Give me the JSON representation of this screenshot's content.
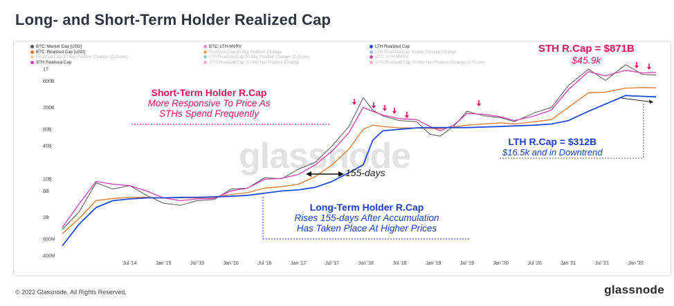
{
  "title": "Long- and Short-Term Holder Realized Cap",
  "watermark": "glassnode",
  "footer": {
    "copyright": "© 2022 Glassnode. All Rights Reserved.",
    "brand": "glassnode"
  },
  "colors": {
    "market_cap": "#555555",
    "sth": "#d43fb2",
    "lth": "#1f4bd8",
    "realized": "#e07a2a",
    "accent_pink": "#e0115f",
    "accent_blue": "#1a3fc4"
  },
  "legend": [
    {
      "label": "BTC: Market Cap [USD]",
      "color": "#555555",
      "faded": false
    },
    {
      "label": "BTC: Realized Cap [USD]",
      "color": "#e07a2a",
      "faded": false
    },
    {
      "label": "Realized Cap 30-day Position Change (Z-Score)",
      "color": "#f3c9a3",
      "faded": true
    },
    {
      "label": "STH Realised Cap",
      "color": "#d43fb2",
      "faded": false
    },
    {
      "label": "BTC: LTH-MVRV",
      "color": "#f08ac4",
      "faded": false
    },
    {
      "label": "Realized Cap 30-day Position Change",
      "color": "#f1a66b",
      "faded": true
    },
    {
      "label": "LTH Realized Cap 30-day Position Change (Z-Score)",
      "color": "#8fd0c4",
      "faded": true
    },
    {
      "label": "STH Realised Cap 30-day Net Position Change",
      "color": "#f0b0c8",
      "faded": true
    },
    {
      "label": "LTH Realized Cap",
      "color": "#1f4bd8",
      "faded": false
    },
    {
      "label": "LTH Realized Cap 30-day Position Change",
      "color": "#9db4f0",
      "faded": true
    },
    {
      "label": "BTC: STH-MVRV",
      "color": "#c04da8",
      "faded": true
    },
    {
      "label": "STH Realised Cap 30-day Net Position Change (Z-Score)",
      "color": "#f0b0c8",
      "faded": true
    }
  ],
  "annotations": {
    "sth_title": "STH R.Cap = $871B",
    "sth_price": "$45.9k",
    "lth_title": "LTH R.Cap = $312B",
    "lth_sub": "$16.5k and in Downtrend",
    "sth_box_title": "Short-Term Holder R.Cap",
    "sth_box_line1": "More Responsive To Price As",
    "sth_box_line2": "STHs Spend Frequently",
    "lth_box_title": "Long-Term Holder R.Cap",
    "lth_box_line1": "Rises 155-days After Accumulation",
    "lth_box_line2": "Has Taken Place At Higher Prices",
    "lag_label": "155-days"
  },
  "chart_data": {
    "type": "line",
    "title": "Long- and Short-Term Holder Realized Cap",
    "xlabel": "",
    "ylabel": "",
    "y_scale": "log",
    "ylim": [
      400000000,
      1000000000000
    ],
    "y_ticks": [
      "1T",
      "600B",
      "200B",
      "80B",
      "40B",
      "10B",
      "6B",
      "2B",
      "800M",
      "400M"
    ],
    "y_tick_values": [
      1000000000000,
      600000000000,
      200000000000,
      80000000000,
      40000000000,
      10000000000,
      6000000000,
      2000000000,
      800000000,
      400000000
    ],
    "x_ticks": [
      "Jul '14",
      "Jan '15",
      "Jul '15",
      "Jan '16",
      "Jul '16",
      "Jan '17",
      "Jul '17",
      "Jan '18",
      "Jul '18",
      "Jan '19",
      "Jul '19",
      "Jan '20",
      "Jul '20",
      "Jan '21",
      "Jul '21",
      "Jan '22"
    ],
    "x": [
      2013.5,
      2013.75,
      2014.0,
      2014.25,
      2014.5,
      2014.75,
      2015.0,
      2015.25,
      2015.5,
      2015.75,
      2016.0,
      2016.25,
      2016.5,
      2016.75,
      2017.0,
      2017.25,
      2017.5,
      2017.75,
      2017.96,
      2018.1,
      2018.25,
      2018.5,
      2018.75,
      2018.95,
      2019.1,
      2019.3,
      2019.5,
      2019.75,
      2020.0,
      2020.2,
      2020.5,
      2020.75,
      2021.0,
      2021.3,
      2021.55,
      2021.85,
      2022.1,
      2022.3
    ],
    "series": [
      {
        "name": "BTC: Market Cap [USD]",
        "values": [
          1200000000.0,
          2500000000.0,
          8500000000.0,
          6500000000.0,
          7500000000.0,
          5000000000.0,
          3600000000.0,
          3300000000.0,
          4000000000.0,
          4200000000.0,
          6500000000.0,
          6800000000.0,
          10500000000.0,
          10000000000.0,
          15000000000.0,
          20000000000.0,
          40000000000.0,
          90000000000.0,
          300000000000.0,
          180000000000.0,
          140000000000.0,
          115000000000.0,
          110000000000.0,
          65000000000.0,
          60000000000.0,
          90000000000.0,
          170000000000.0,
          140000000000.0,
          130000000000.0,
          110000000000.0,
          160000000000.0,
          200000000000.0,
          500000000000.0,
          1000000000000.0,
          620000000000.0,
          1200000000000.0,
          800000000000.0,
          780000000000.0
        ]
      },
      {
        "name": "BTC: Realized Cap [USD]",
        "values": [
          1000000000.0,
          1900000000.0,
          4000000000.0,
          4400000000.0,
          4600000000.0,
          4600000000.0,
          4500000000.0,
          4500000000.0,
          4500000000.0,
          4600000000.0,
          5200000000.0,
          5600000000.0,
          6800000000.0,
          7200000000.0,
          8000000000.0,
          11000000000.0,
          18000000000.0,
          35000000000.0,
          80000000000.0,
          95000000000.0,
          90000000000.0,
          85000000000.0,
          85000000000.0,
          83000000000.0,
          82000000000.0,
          88000000000.0,
          95000000000.0,
          100000000000.0,
          105000000000.0,
          100000000000.0,
          110000000000.0,
          120000000000.0,
          200000000000.0,
          370000000000.0,
          380000000000.0,
          450000000000.0,
          460000000000.0,
          455000000000.0
        ]
      },
      {
        "name": "STH Realised Cap",
        "values": [
          1300000000.0,
          3500000000.0,
          9000000000.0,
          8000000000.0,
          7500000000.0,
          6000000000.0,
          4500000000.0,
          4000000000.0,
          4300000000.0,
          4400000000.0,
          6000000000.0,
          6800000000.0,
          9800000000.0,
          10200000000.0,
          12000000000.0,
          18000000000.0,
          32000000000.0,
          70000000000.0,
          200000000000.0,
          170000000000.0,
          145000000000.0,
          125000000000.0,
          120000000000.0,
          90000000000.0,
          75000000000.0,
          95000000000.0,
          155000000000.0,
          150000000000.0,
          135000000000.0,
          115000000000.0,
          140000000000.0,
          180000000000.0,
          420000000000.0,
          900000000000.0,
          750000000000.0,
          950000000000.0,
          850000000000.0,
          871000000000.0
        ]
      },
      {
        "name": "LTH Realized Cap",
        "values": [
          600000000.0,
          1500000000.0,
          3000000000.0,
          4000000000.0,
          4300000000.0,
          4500000000.0,
          4500000000.0,
          4600000000.0,
          4600000000.0,
          4700000000.0,
          4800000000.0,
          5000000000.0,
          5500000000.0,
          6000000000.0,
          6300000000.0,
          7000000000.0,
          9000000000.0,
          13000000000.0,
          18000000000.0,
          50000000000.0,
          75000000000.0,
          80000000000.0,
          85000000000.0,
          86000000000.0,
          86000000000.0,
          86000000000.0,
          86000000000.0,
          88000000000.0,
          90000000000.0,
          92000000000.0,
          95000000000.0,
          100000000000.0,
          115000000000.0,
          170000000000.0,
          230000000000.0,
          330000000000.0,
          318000000000.0,
          312000000000.0
        ]
      }
    ]
  }
}
